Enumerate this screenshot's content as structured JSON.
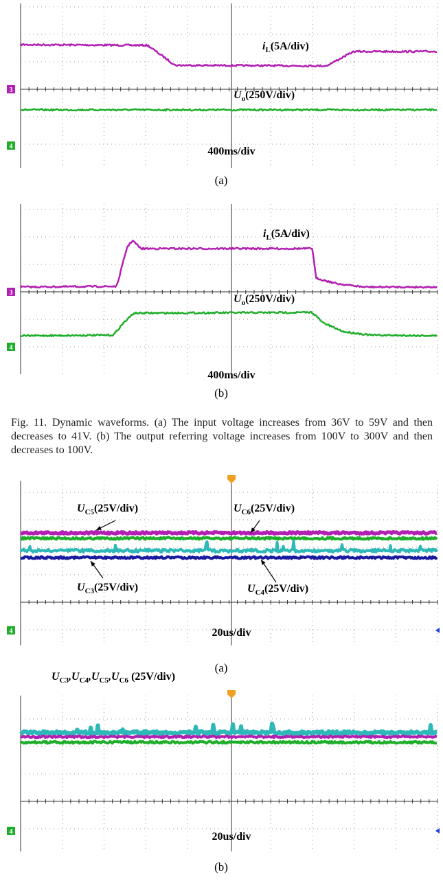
{
  "panels": [
    {
      "labels": [
        [
          "i",
          "L",
          "(5A/div)"
        ],
        [
          "U",
          "o",
          "(250V/div)"
        ]
      ],
      "markers": [
        "3",
        "4"
      ],
      "timebase": "400ms/div",
      "caption": "(a)"
    },
    {
      "labels": [
        [
          "i",
          "L",
          "(5A/div)"
        ],
        [
          "U",
          "o",
          "(250V/div)"
        ]
      ],
      "markers": [
        "3",
        "4"
      ],
      "timebase": "400ms/div",
      "caption": "(b)"
    },
    {
      "labels": [
        [
          "U",
          "C5",
          "(25V/div)"
        ],
        [
          "U",
          "C6",
          "(25V/div)"
        ],
        [
          "U",
          "C3",
          "(25V/div)"
        ],
        [
          "U",
          "C4",
          "(25V/div)"
        ]
      ],
      "markers": [
        "4"
      ],
      "timebase": "20us/div",
      "caption": "(a)"
    },
    {
      "labels": [
        [
          "U",
          "C3",
          ",U",
          "C4",
          ",U",
          "C5",
          ",U",
          "C6",
          " (25V/div)"
        ]
      ],
      "markers": [
        "4"
      ],
      "timebase": "20us/div",
      "caption": "(b)"
    }
  ],
  "figure_caption": "Fig. 11. Dynamic waveforms. (a) The input voltage increases from 36V to 59V and then decreases to 41V. (b) The output referring voltage increases from 100V to 300V and then decreases to 100V."
}
